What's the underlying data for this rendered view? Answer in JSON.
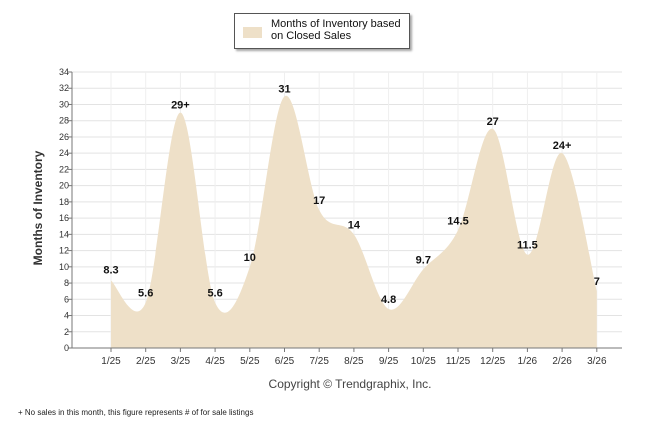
{
  "chart_data": {
    "type": "area",
    "title": "",
    "legend": {
      "label": "Months of Inventory based on Closed Sales",
      "position": "top-center"
    },
    "ylabel": "Months of Inventory",
    "xlabel": "",
    "ylim": [
      0,
      34
    ],
    "yticks": [
      0,
      2,
      4,
      6,
      8,
      10,
      12,
      14,
      16,
      18,
      20,
      22,
      24,
      26,
      28,
      30,
      32,
      34
    ],
    "grid": true,
    "categories": [
      "1/25",
      "2/25",
      "3/25",
      "4/25",
      "5/25",
      "6/25",
      "7/25",
      "8/25",
      "9/25",
      "10/25",
      "11/25",
      "12/25",
      "1/26",
      "2/26",
      "3/26"
    ],
    "values": [
      8.3,
      5.6,
      29,
      5.6,
      10,
      31,
      17,
      14,
      4.8,
      9.7,
      14.5,
      27,
      11.5,
      24,
      7
    ],
    "data_labels": [
      "8.3",
      "5.6",
      "29+",
      "5.6",
      "10",
      "31",
      "17",
      "14",
      "4.8",
      "9.7",
      "14.5",
      "27",
      "11.5",
      "24+",
      "7"
    ],
    "fill_color": "#eee0c8",
    "grid_color": "#e3e3e3"
  },
  "copyright": "Copyright © Trendgraphix, Inc.",
  "footnote": "+  No sales in this month, this figure represents # of for sale listings"
}
